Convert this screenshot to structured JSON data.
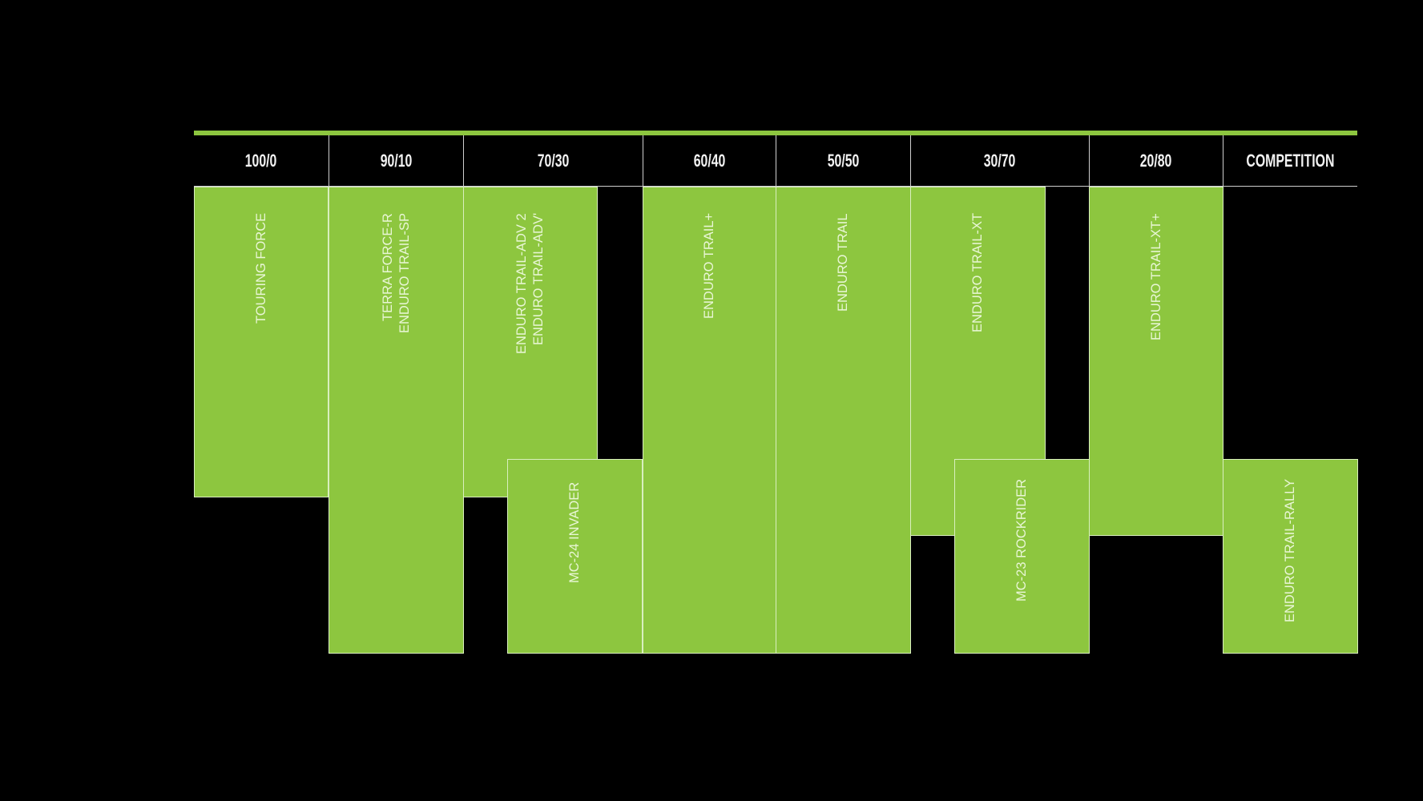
{
  "colors": {
    "background": "#000000",
    "accent_green": "#8dc63f",
    "text": "#f2f2f2"
  },
  "columns": [
    "100/0",
    "90/10",
    "70/30",
    "60/40",
    "50/50",
    "30/70",
    "20/80",
    "COMPETITION"
  ],
  "blocks": [
    {
      "label": "TOURING FORCE",
      "column": "100/0"
    },
    {
      "label": "TERRA FORCE-R\nENDURO TRAIL-SP",
      "column": "90/10"
    },
    {
      "label": "ENDURO TRAIL-ADV 2\nENDURO TRAIL-ADV'",
      "column": "70/30"
    },
    {
      "label": "MC-24 INVADER",
      "column": "70/30"
    },
    {
      "label": "ENDURO TRAIL+",
      "column": "60/40"
    },
    {
      "label": "ENDURO TRAIL",
      "column": "50/50"
    },
    {
      "label": "ENDURO TRAIL-XT",
      "column": "30/70"
    },
    {
      "label": "MC-23 ROCKRIDER",
      "column": "30/70"
    },
    {
      "label": "ENDURO TRAIL-XT+",
      "column": "20/80"
    },
    {
      "label": "ENDURO TRAIL-RALLY",
      "column": "COMPETITION"
    }
  ]
}
